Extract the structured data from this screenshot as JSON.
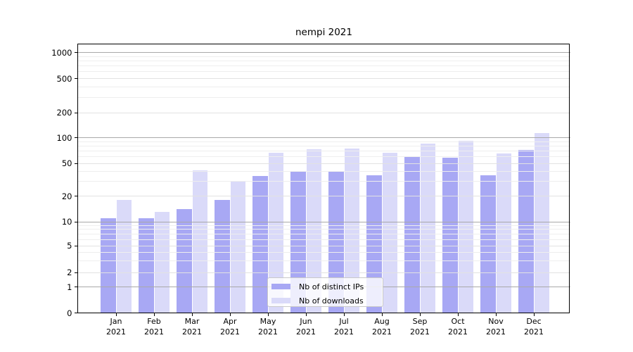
{
  "chart_data": {
    "type": "bar",
    "title": "nempi 2021",
    "categories": [
      "Jan",
      "Feb",
      "Mar",
      "Apr",
      "May",
      "Jun",
      "Jul",
      "Aug",
      "Sep",
      "Oct",
      "Nov",
      "Dec"
    ],
    "category_year": "2021",
    "series": [
      {
        "name": "Nb of distinct IPs",
        "color": "#a8a8f4",
        "values": [
          11,
          11,
          14,
          18,
          35,
          40,
          40,
          36,
          59,
          58,
          36,
          72
        ]
      },
      {
        "name": "Nb of downloads",
        "color": "#dadaf9",
        "values": [
          18,
          13,
          41,
          30,
          66,
          73,
          75,
          67,
          85,
          92,
          65,
          113
        ]
      }
    ],
    "yscale": "symlog",
    "yticks": [
      0,
      1,
      2,
      5,
      10,
      20,
      50,
      100,
      200,
      500,
      1000
    ],
    "ylim": [
      0,
      1300
    ],
    "xlabel": "",
    "ylabel": "",
    "grid": "both",
    "legend_position": "lower center"
  },
  "colors": {
    "background": "#ffffff",
    "axis": "#000000",
    "grid_power10": "#a9a9a9",
    "grid_major": "#e2e2e2",
    "grid_minor": "#eeeeee",
    "text": "#000000",
    "legend_border": "#c9c9c9"
  }
}
